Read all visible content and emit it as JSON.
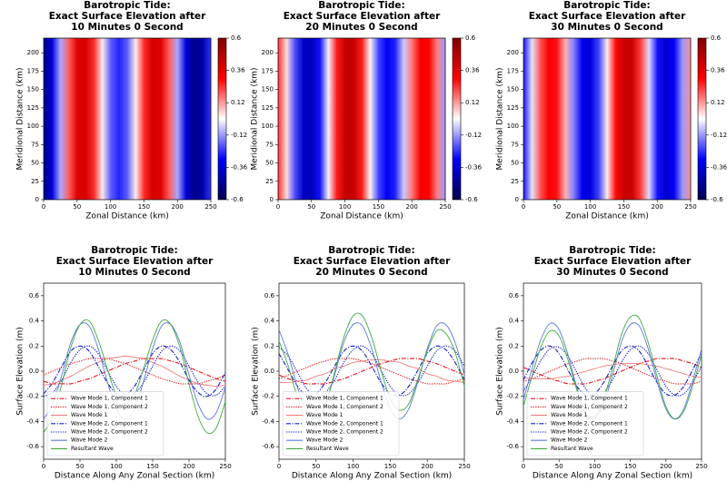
{
  "chart_data": [
    {
      "type": "heatmap",
      "title": [
        "Barotropic Tide:",
        "Exact Surface Elevation after",
        "10 Minutes 0 Second"
      ],
      "xlabel": "Zonal Distance (km)",
      "ylabel": "Meridional Distance (km)",
      "x": [
        0,
        12.5,
        25,
        37.5,
        50,
        62.5,
        75,
        87.5,
        100,
        112.5,
        125,
        137.5,
        150,
        162.5,
        175,
        187.5,
        200,
        212.5,
        225,
        237.5,
        250
      ],
      "values": [
        -0.49,
        -0.36,
        -0.1,
        0.19,
        0.37,
        0.4,
        0.25,
        0.02,
        -0.19,
        -0.26,
        -0.19,
        0.02,
        0.25,
        0.4,
        0.37,
        0.19,
        -0.1,
        -0.36,
        -0.49,
        -0.45,
        -0.24
      ],
      "xlim": [
        0,
        250
      ],
      "xticks": [
        0,
        50,
        100,
        150,
        200,
        250
      ],
      "ylim": [
        0,
        220
      ],
      "yticks": [
        0,
        25,
        50,
        75,
        100,
        125,
        150,
        175,
        200
      ],
      "clim": [
        -0.6,
        0.6
      ],
      "cticks": [
        -0.6,
        -0.36,
        -0.12,
        0.12,
        0.36,
        0.6
      ],
      "colormap": "seismic"
    },
    {
      "type": "heatmap",
      "title": [
        "Barotropic Tide:",
        "Exact Surface Elevation after",
        "20 Minutes 0 Second"
      ],
      "xlabel": "Zonal Distance (km)",
      "ylabel": "Meridional Distance (km)",
      "x": [
        0,
        12.5,
        25,
        37.5,
        50,
        62.5,
        75,
        87.5,
        100,
        112.5,
        125,
        137.5,
        150,
        162.5,
        175,
        187.5,
        200,
        212.5,
        225,
        237.5,
        250
      ],
      "values": [
        0.24,
        0.04,
        -0.21,
        -0.4,
        -0.42,
        -0.28,
        -0.01,
        0.27,
        0.44,
        0.44,
        0.27,
        0.01,
        -0.22,
        -0.31,
        -0.26,
        -0.06,
        0.16,
        0.32,
        0.3,
        0.15,
        -0.12
      ],
      "xlim": [
        0,
        250
      ],
      "xticks": [
        0,
        50,
        100,
        150,
        200,
        250
      ],
      "ylim": [
        0,
        220
      ],
      "yticks": [
        0,
        25,
        50,
        75,
        100,
        125,
        150,
        175,
        200
      ],
      "clim": [
        -0.6,
        0.6
      ],
      "cticks": [
        -0.6,
        -0.36,
        -0.12,
        0.12,
        0.36,
        0.6
      ],
      "colormap": "seismic"
    },
    {
      "type": "heatmap",
      "title": [
        "Barotropic Tide:",
        "Exact Surface Elevation after",
        "30 Minutes 0 Second"
      ],
      "xlabel": "Zonal Distance (km)",
      "ylabel": "Meridional Distance (km)",
      "x": [
        0,
        12.5,
        25,
        37.5,
        50,
        62.5,
        75,
        87.5,
        100,
        112.5,
        125,
        137.5,
        150,
        162.5,
        175,
        187.5,
        200,
        212.5,
        225,
        237.5,
        250
      ],
      "values": [
        -0.28,
        -0.03,
        0.2,
        0.32,
        0.28,
        0.09,
        -0.15,
        -0.33,
        -0.36,
        -0.22,
        0.02,
        0.29,
        0.43,
        0.42,
        0.23,
        -0.04,
        -0.28,
        -0.38,
        -0.32,
        -0.12,
        0.13
      ],
      "xlim": [
        0,
        250
      ],
      "xticks": [
        0,
        50,
        100,
        150,
        200,
        250
      ],
      "ylim": [
        0,
        220
      ],
      "yticks": [
        0,
        25,
        50,
        75,
        100,
        125,
        150,
        175,
        200
      ],
      "clim": [
        -0.6,
        0.6
      ],
      "cticks": [
        -0.6,
        -0.36,
        -0.12,
        0.12,
        0.36,
        0.6
      ],
      "colormap": "seismic"
    },
    {
      "type": "line",
      "title": [
        "Barotropic Tide:",
        "Exact Surface Elevation after",
        "10 Minutes 0 Second"
      ],
      "xlabel": "Distance Along Any Zonal Section (km)",
      "ylabel": "Surface Elevation (m)",
      "x": [
        0,
        12.5,
        25,
        37.5,
        50,
        62.5,
        75,
        87.5,
        100,
        112.5,
        125,
        137.5,
        150,
        162.5,
        175,
        187.5,
        200,
        212.5,
        225,
        237.5,
        250
      ],
      "xlim": [
        0,
        250
      ],
      "xticks": [
        0,
        50,
        100,
        150,
        200,
        250
      ],
      "ylim": [
        -0.7,
        0.7
      ],
      "yticks": [
        -0.6,
        -0.4,
        -0.2,
        {
          "value": 0,
          "label": "0.0"
        },
        0.2,
        0.4,
        0.6
      ],
      "legend": "lower left",
      "series": [
        {
          "name": "Wave Mode 1, Component 1",
          "color": "#e8141c",
          "dash": "dashdot",
          "values": [
            -0.08,
            -0.1,
            -0.1,
            -0.1,
            -0.08,
            -0.06,
            -0.03,
            0,
            0.03,
            0.06,
            0.08,
            0.1,
            0.1,
            0.1,
            0.08,
            0.06,
            0.03,
            0,
            -0.03,
            -0.06,
            -0.08
          ]
        },
        {
          "name": "Wave Mode 1, Component 2",
          "color": "#e8141c",
          "dash": "dotted",
          "values": [
            -0.03,
            0,
            0.03,
            0.06,
            0.08,
            0.1,
            0.1,
            0.1,
            0.08,
            0.06,
            0.03,
            0,
            -0.03,
            -0.06,
            -0.08,
            -0.1,
            -0.1,
            -0.1,
            -0.08,
            -0.06,
            -0.03
          ]
        },
        {
          "name": "Wave Mode 1",
          "color": "#f47a7a",
          "dash": "solid",
          "values": [
            -0.11,
            -0.1,
            -0.07,
            -0.04,
            0,
            0.04,
            0.07,
            0.1,
            0.11,
            0.12,
            0.11,
            0.1,
            0.07,
            0.04,
            0,
            -0.04,
            -0.07,
            -0.1,
            -0.11,
            -0.12,
            -0.11
          ]
        },
        {
          "name": "Wave Mode 2, Component 1",
          "color": "#1420c8",
          "dash": "dashdot",
          "values": [
            -0.18,
            -0.09,
            0.04,
            0.16,
            0.2,
            0.16,
            0.04,
            -0.09,
            -0.18,
            -0.19,
            -0.12,
            0.01,
            0.14,
            0.2,
            0.17,
            0.07,
            -0.07,
            -0.17,
            -0.2,
            -0.14,
            -0.01
          ]
        },
        {
          "name": "Wave Mode 2, Component 2",
          "color": "#1420c8",
          "dash": "dotted",
          "values": [
            -0.2,
            -0.17,
            -0.07,
            0.07,
            0.17,
            0.2,
            0.14,
            0.01,
            -0.12,
            -0.19,
            -0.18,
            -0.09,
            0.04,
            0.16,
            0.2,
            0.16,
            0.04,
            -0.09,
            -0.18,
            -0.19,
            -0.12
          ]
        },
        {
          "name": "Wave Mode 2",
          "color": "#5a78e0",
          "dash": "solid",
          "values": [
            -0.38,
            -0.26,
            -0.03,
            0.23,
            0.37,
            0.36,
            0.18,
            -0.08,
            -0.3,
            -0.38,
            -0.3,
            -0.08,
            0.18,
            0.36,
            0.37,
            0.23,
            -0.03,
            -0.26,
            -0.38,
            -0.33,
            -0.13
          ]
        },
        {
          "name": "Resultant Wave",
          "color": "#3caa3c",
          "dash": "solid",
          "values": [
            -0.49,
            -0.36,
            -0.1,
            0.19,
            0.37,
            0.4,
            0.25,
            0.02,
            -0.19,
            -0.26,
            -0.19,
            0.02,
            0.25,
            0.4,
            0.37,
            0.19,
            -0.1,
            -0.36,
            -0.49,
            -0.45,
            -0.24
          ]
        }
      ]
    },
    {
      "type": "line",
      "title": [
        "Barotropic Tide:",
        "Exact Surface Elevation after",
        "20 Minutes 0 Second"
      ],
      "xlabel": "Distance Along Any Zonal Section (km)",
      "ylabel": "Surface Elevation (m)",
      "x": [
        0,
        12.5,
        25,
        37.5,
        50,
        62.5,
        75,
        87.5,
        100,
        112.5,
        125,
        137.5,
        150,
        162.5,
        175,
        187.5,
        200,
        212.5,
        225,
        237.5,
        250
      ],
      "xlim": [
        0,
        250
      ],
      "xticks": [
        0,
        50,
        100,
        150,
        200,
        250
      ],
      "ylim": [
        -0.7,
        0.7
      ],
      "yticks": [
        -0.6,
        -0.4,
        -0.2,
        {
          "value": 0,
          "label": "0.0"
        },
        0.2,
        0.4,
        0.6
      ],
      "legend": "lower left",
      "series": [
        {
          "name": "Wave Mode 1, Component 1",
          "color": "#e8141c",
          "dash": "dashdot",
          "values": [
            -0.03,
            -0.06,
            -0.08,
            -0.1,
            -0.1,
            -0.1,
            -0.08,
            -0.06,
            -0.03,
            0,
            0.03,
            0.06,
            0.08,
            0.1,
            0.1,
            0.1,
            0.08,
            0.06,
            0.03,
            0,
            -0.03
          ]
        },
        {
          "name": "Wave Mode 1, Component 2",
          "color": "#e8141c",
          "dash": "dotted",
          "values": [
            -0.06,
            -0.03,
            0,
            0.03,
            0.06,
            0.08,
            0.1,
            0.1,
            0.1,
            0.08,
            0.06,
            0.03,
            0,
            -0.03,
            -0.06,
            -0.08,
            -0.1,
            -0.1,
            -0.1,
            -0.08,
            -0.06
          ]
        },
        {
          "name": "Wave Mode 1",
          "color": "#f47a7a",
          "dash": "solid",
          "values": [
            -0.09,
            -0.09,
            -0.08,
            -0.07,
            -0.04,
            -0.02,
            0.02,
            0.04,
            0.07,
            0.08,
            0.09,
            0.09,
            0.08,
            0.07,
            0.04,
            0.02,
            -0.02,
            -0.04,
            -0.07,
            -0.08,
            -0.09
          ]
        },
        {
          "name": "Wave Mode 2, Component 1",
          "color": "#1420c8",
          "dash": "dashdot",
          "values": [
            0.14,
            0.01,
            -0.12,
            -0.19,
            -0.18,
            -0.09,
            0.04,
            0.16,
            0.2,
            0.16,
            0.04,
            -0.09,
            -0.18,
            -0.19,
            -0.12,
            0.01,
            0.14,
            0.2,
            0.17,
            0.07,
            -0.07
          ]
        },
        {
          "name": "Wave Mode 2, Component 2",
          "color": "#1420c8",
          "dash": "dotted",
          "values": [
            0.19,
            0.12,
            -0.01,
            -0.14,
            -0.2,
            -0.17,
            -0.07,
            0.07,
            0.17,
            0.2,
            0.14,
            0.01,
            -0.12,
            -0.19,
            -0.18,
            -0.09,
            0.04,
            0.16,
            0.2,
            0.16,
            0.04
          ]
        },
        {
          "name": "Wave Mode 2",
          "color": "#5a78e0",
          "dash": "solid",
          "values": [
            0.33,
            0.13,
            -0.13,
            -0.33,
            -0.38,
            -0.26,
            -0.03,
            0.23,
            0.37,
            0.36,
            0.18,
            -0.08,
            -0.3,
            -0.38,
            -0.3,
            -0.08,
            0.18,
            0.36,
            0.37,
            0.23,
            -0.03
          ]
        },
        {
          "name": "Resultant Wave",
          "color": "#3caa3c",
          "dash": "solid",
          "values": [
            0.24,
            0.04,
            -0.21,
            -0.4,
            -0.42,
            -0.28,
            -0.01,
            0.27,
            0.44,
            0.44,
            0.27,
            0.01,
            -0.22,
            -0.31,
            -0.26,
            -0.06,
            0.16,
            0.32,
            0.3,
            0.15,
            -0.12
          ]
        }
      ]
    },
    {
      "type": "line",
      "title": [
        "Barotropic Tide:",
        "Exact Surface Elevation after",
        "30 Minutes 0 Second"
      ],
      "xlabel": "Distance Along Any Zonal Section (km)",
      "ylabel": "Surface Elevation (m)",
      "x": [
        0,
        12.5,
        25,
        37.5,
        50,
        62.5,
        75,
        87.5,
        100,
        112.5,
        125,
        137.5,
        150,
        162.5,
        175,
        187.5,
        200,
        212.5,
        225,
        237.5,
        250
      ],
      "xlim": [
        0,
        250
      ],
      "xticks": [
        0,
        50,
        100,
        150,
        200,
        250
      ],
      "ylim": [
        -0.7,
        0.7
      ],
      "yticks": [
        -0.6,
        -0.4,
        -0.2,
        {
          "value": 0,
          "label": "0.0"
        },
        0.2,
        0.4,
        0.6
      ],
      "legend": "lower left",
      "series": [
        {
          "name": "Wave Mode 1, Component 1",
          "color": "#e8141c",
          "dash": "dashdot",
          "values": [
            0.03,
            0,
            -0.03,
            -0.06,
            -0.08,
            -0.1,
            -0.1,
            -0.1,
            -0.08,
            -0.06,
            -0.03,
            0,
            0.03,
            0.06,
            0.08,
            0.1,
            0.1,
            0.1,
            0.08,
            0.06,
            0.03
          ]
        },
        {
          "name": "Wave Mode 1, Component 2",
          "color": "#e8141c",
          "dash": "dotted",
          "values": [
            -0.08,
            -0.06,
            -0.03,
            0,
            0.03,
            0.06,
            0.08,
            0.1,
            0.1,
            0.1,
            0.08,
            0.06,
            0.03,
            0,
            -0.03,
            -0.06,
            -0.08,
            -0.1,
            -0.1,
            -0.1,
            -0.08
          ]
        },
        {
          "name": "Wave Mode 1",
          "color": "#f47a7a",
          "dash": "solid",
          "values": [
            -0.05,
            -0.06,
            -0.06,
            -0.06,
            -0.05,
            -0.04,
            -0.02,
            0,
            0.02,
            0.04,
            0.05,
            0.06,
            0.06,
            0.06,
            0.05,
            0.04,
            0.02,
            0,
            -0.02,
            -0.04,
            -0.05
          ]
        },
        {
          "name": "Wave Mode 2, Component 1",
          "color": "#1420c8",
          "dash": "dashdot",
          "values": [
            -0.07,
            0.07,
            0.17,
            0.2,
            0.14,
            0.01,
            -0.12,
            -0.19,
            -0.18,
            -0.09,
            0.04,
            0.16,
            0.2,
            0.16,
            0.04,
            -0.09,
            -0.18,
            -0.19,
            -0.12,
            0.01,
            0.14
          ]
        },
        {
          "name": "Wave Mode 2, Component 2",
          "color": "#1420c8",
          "dash": "dotted",
          "values": [
            -0.16,
            -0.04,
            0.09,
            0.18,
            0.19,
            0.12,
            -0.01,
            -0.14,
            -0.2,
            -0.17,
            -0.07,
            0.07,
            0.17,
            0.2,
            0.14,
            0.01,
            -0.12,
            -0.19,
            -0.18,
            -0.09,
            0.04
          ]
        },
        {
          "name": "Wave Mode 2",
          "color": "#5a78e0",
          "dash": "solid",
          "values": [
            -0.23,
            0.03,
            0.26,
            0.38,
            0.33,
            0.13,
            -0.13,
            -0.33,
            -0.38,
            -0.26,
            -0.03,
            0.23,
            0.37,
            0.36,
            0.18,
            -0.08,
            -0.3,
            -0.38,
            -0.3,
            -0.08,
            0.18
          ]
        },
        {
          "name": "Resultant Wave",
          "color": "#3caa3c",
          "dash": "solid",
          "values": [
            -0.28,
            -0.03,
            0.2,
            0.32,
            0.28,
            0.09,
            -0.15,
            -0.33,
            -0.36,
            -0.22,
            0.02,
            0.29,
            0.43,
            0.42,
            0.23,
            -0.04,
            -0.28,
            -0.38,
            -0.32,
            -0.12,
            0.13
          ]
        }
      ]
    }
  ]
}
